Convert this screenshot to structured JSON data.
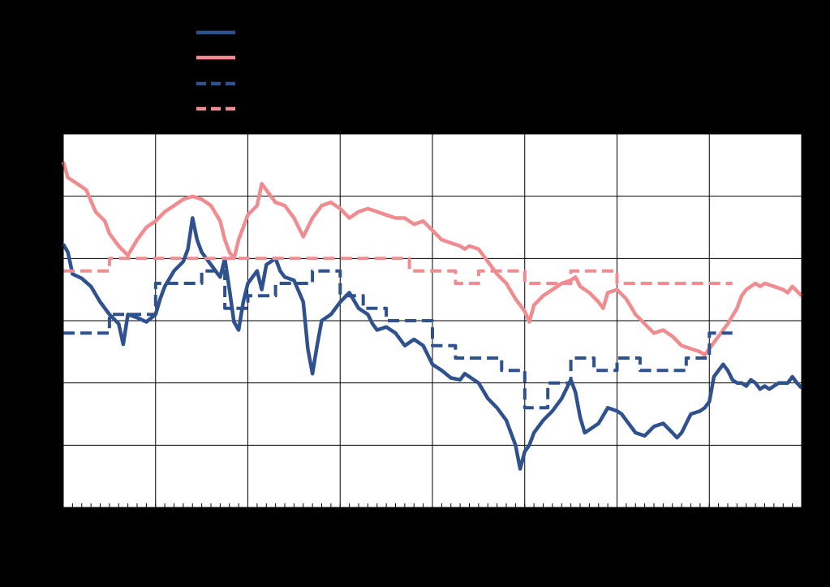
{
  "chart_data": {
    "type": "line",
    "title": "",
    "xlabel": "",
    "ylabel": "",
    "x_range": [
      0,
      8
    ],
    "y_range": [
      0,
      6
    ],
    "x_gridlines": [
      0,
      1,
      2,
      3,
      4,
      5,
      6,
      7,
      8
    ],
    "y_gridlines": [
      0,
      1,
      2,
      3,
      4,
      5,
      6
    ],
    "grid": true,
    "legend": "top-left",
    "colors": {
      "background": "#000000",
      "plot_area": "#ffffff",
      "grid": "#000000",
      "blue": "#2f528f",
      "pink": "#f08c90"
    },
    "series": [
      {
        "style": "solid",
        "color": "#2f528f",
        "points": [
          [
            0.0,
            4.23
          ],
          [
            0.05,
            4.1
          ],
          [
            0.1,
            3.75
          ],
          [
            0.2,
            3.68
          ],
          [
            0.3,
            3.55
          ],
          [
            0.4,
            3.3
          ],
          [
            0.5,
            3.1
          ],
          [
            0.6,
            2.95
          ],
          [
            0.65,
            2.62
          ],
          [
            0.7,
            3.1
          ],
          [
            0.8,
            3.05
          ],
          [
            0.9,
            2.98
          ],
          [
            1.0,
            3.1
          ],
          [
            1.05,
            3.35
          ],
          [
            1.1,
            3.55
          ],
          [
            1.2,
            3.8
          ],
          [
            1.3,
            3.95
          ],
          [
            1.35,
            4.15
          ],
          [
            1.4,
            4.65
          ],
          [
            1.45,
            4.3
          ],
          [
            1.5,
            4.1
          ],
          [
            1.6,
            3.9
          ],
          [
            1.7,
            3.7
          ],
          [
            1.75,
            4.0
          ],
          [
            1.8,
            3.5
          ],
          [
            1.85,
            2.98
          ],
          [
            1.9,
            2.85
          ],
          [
            1.95,
            3.3
          ],
          [
            2.0,
            3.6
          ],
          [
            2.1,
            3.8
          ],
          [
            2.15,
            3.5
          ],
          [
            2.2,
            3.9
          ],
          [
            2.3,
            4.0
          ],
          [
            2.35,
            3.8
          ],
          [
            2.4,
            3.7
          ],
          [
            2.5,
            3.65
          ],
          [
            2.6,
            3.3
          ],
          [
            2.65,
            2.55
          ],
          [
            2.7,
            2.15
          ],
          [
            2.75,
            2.6
          ],
          [
            2.8,
            3.0
          ],
          [
            2.9,
            3.1
          ],
          [
            3.0,
            3.3
          ],
          [
            3.1,
            3.45
          ],
          [
            3.2,
            3.2
          ],
          [
            3.3,
            3.1
          ],
          [
            3.35,
            2.95
          ],
          [
            3.4,
            2.85
          ],
          [
            3.5,
            2.9
          ],
          [
            3.6,
            2.8
          ],
          [
            3.7,
            2.6
          ],
          [
            3.8,
            2.7
          ],
          [
            3.9,
            2.6
          ],
          [
            4.0,
            2.3
          ],
          [
            4.1,
            2.2
          ],
          [
            4.2,
            2.08
          ],
          [
            4.3,
            2.05
          ],
          [
            4.35,
            2.15
          ],
          [
            4.4,
            2.1
          ],
          [
            4.5,
            2.0
          ],
          [
            4.6,
            1.75
          ],
          [
            4.7,
            1.6
          ],
          [
            4.8,
            1.4
          ],
          [
            4.9,
            1.0
          ],
          [
            4.95,
            0.62
          ],
          [
            5.0,
            0.9
          ],
          [
            5.05,
            1.0
          ],
          [
            5.1,
            1.2
          ],
          [
            5.2,
            1.4
          ],
          [
            5.3,
            1.55
          ],
          [
            5.4,
            1.75
          ],
          [
            5.5,
            2.05
          ],
          [
            5.55,
            1.85
          ],
          [
            5.6,
            1.45
          ],
          [
            5.65,
            1.2
          ],
          [
            5.7,
            1.25
          ],
          [
            5.8,
            1.35
          ],
          [
            5.9,
            1.6
          ],
          [
            6.0,
            1.55
          ],
          [
            6.05,
            1.5
          ],
          [
            6.1,
            1.4
          ],
          [
            6.2,
            1.2
          ],
          [
            6.3,
            1.15
          ],
          [
            6.4,
            1.3
          ],
          [
            6.5,
            1.35
          ],
          [
            6.6,
            1.2
          ],
          [
            6.65,
            1.12
          ],
          [
            6.7,
            1.2
          ],
          [
            6.8,
            1.5
          ],
          [
            6.9,
            1.55
          ],
          [
            6.95,
            1.6
          ],
          [
            7.0,
            1.7
          ],
          [
            7.05,
            2.1
          ],
          [
            7.1,
            2.2
          ],
          [
            7.15,
            2.3
          ],
          [
            7.2,
            2.2
          ],
          [
            7.25,
            2.05
          ],
          [
            7.3,
            2.0
          ],
          [
            7.35,
            2.0
          ],
          [
            7.4,
            1.95
          ],
          [
            7.45,
            2.05
          ],
          [
            7.5,
            2.0
          ],
          [
            7.55,
            1.9
          ],
          [
            7.6,
            1.95
          ],
          [
            7.65,
            1.9
          ],
          [
            7.7,
            1.95
          ],
          [
            7.75,
            2.0
          ],
          [
            7.8,
            2.0
          ],
          [
            7.85,
            2.0
          ],
          [
            7.9,
            2.1
          ],
          [
            7.95,
            2.0
          ],
          [
            8.0,
            1.92
          ]
        ]
      },
      {
        "style": "solid",
        "color": "#f08c90",
        "points": [
          [
            0.0,
            5.55
          ],
          [
            0.05,
            5.3
          ],
          [
            0.15,
            5.2
          ],
          [
            0.25,
            5.1
          ],
          [
            0.35,
            4.75
          ],
          [
            0.45,
            4.6
          ],
          [
            0.5,
            4.4
          ],
          [
            0.6,
            4.2
          ],
          [
            0.7,
            4.05
          ],
          [
            0.8,
            4.3
          ],
          [
            0.9,
            4.5
          ],
          [
            1.0,
            4.6
          ],
          [
            1.1,
            4.75
          ],
          [
            1.2,
            4.85
          ],
          [
            1.3,
            4.95
          ],
          [
            1.4,
            5.0
          ],
          [
            1.5,
            4.95
          ],
          [
            1.6,
            4.85
          ],
          [
            1.7,
            4.6
          ],
          [
            1.75,
            4.3
          ],
          [
            1.8,
            4.1
          ],
          [
            1.85,
            4.0
          ],
          [
            1.9,
            4.3
          ],
          [
            1.95,
            4.5
          ],
          [
            2.0,
            4.7
          ],
          [
            2.1,
            4.85
          ],
          [
            2.15,
            5.2
          ],
          [
            2.2,
            5.1
          ],
          [
            2.3,
            4.9
          ],
          [
            2.4,
            4.85
          ],
          [
            2.5,
            4.65
          ],
          [
            2.6,
            4.35
          ],
          [
            2.7,
            4.65
          ],
          [
            2.8,
            4.85
          ],
          [
            2.9,
            4.9
          ],
          [
            3.0,
            4.8
          ],
          [
            3.1,
            4.65
          ],
          [
            3.2,
            4.75
          ],
          [
            3.3,
            4.8
          ],
          [
            3.4,
            4.75
          ],
          [
            3.5,
            4.7
          ],
          [
            3.6,
            4.65
          ],
          [
            3.7,
            4.65
          ],
          [
            3.8,
            4.55
          ],
          [
            3.9,
            4.6
          ],
          [
            4.0,
            4.45
          ],
          [
            4.1,
            4.3
          ],
          [
            4.2,
            4.25
          ],
          [
            4.3,
            4.2
          ],
          [
            4.35,
            4.15
          ],
          [
            4.4,
            4.2
          ],
          [
            4.5,
            4.15
          ],
          [
            4.6,
            3.95
          ],
          [
            4.7,
            3.75
          ],
          [
            4.8,
            3.6
          ],
          [
            4.9,
            3.35
          ],
          [
            5.0,
            3.15
          ],
          [
            5.05,
            2.98
          ],
          [
            5.1,
            3.25
          ],
          [
            5.2,
            3.4
          ],
          [
            5.3,
            3.5
          ],
          [
            5.4,
            3.6
          ],
          [
            5.5,
            3.65
          ],
          [
            5.55,
            3.7
          ],
          [
            5.6,
            3.55
          ],
          [
            5.7,
            3.45
          ],
          [
            5.8,
            3.3
          ],
          [
            5.85,
            3.2
          ],
          [
            5.9,
            3.45
          ],
          [
            6.0,
            3.5
          ],
          [
            6.1,
            3.35
          ],
          [
            6.2,
            3.1
          ],
          [
            6.3,
            2.95
          ],
          [
            6.4,
            2.8
          ],
          [
            6.5,
            2.85
          ],
          [
            6.6,
            2.75
          ],
          [
            6.7,
            2.6
          ],
          [
            6.8,
            2.55
          ],
          [
            6.9,
            2.5
          ],
          [
            6.95,
            2.45
          ],
          [
            7.0,
            2.55
          ],
          [
            7.1,
            2.75
          ],
          [
            7.2,
            2.95
          ],
          [
            7.3,
            3.2
          ],
          [
            7.35,
            3.4
          ],
          [
            7.4,
            3.5
          ],
          [
            7.5,
            3.6
          ],
          [
            7.55,
            3.55
          ],
          [
            7.6,
            3.6
          ],
          [
            7.7,
            3.55
          ],
          [
            7.8,
            3.5
          ],
          [
            7.85,
            3.45
          ],
          [
            7.9,
            3.55
          ],
          [
            8.0,
            3.4
          ]
        ]
      },
      {
        "style": "dashed",
        "color": "#2f528f",
        "points": [
          [
            0.0,
            2.8
          ],
          [
            0.5,
            2.8
          ],
          [
            0.5,
            3.1
          ],
          [
            1.0,
            3.1
          ],
          [
            1.0,
            3.6
          ],
          [
            1.5,
            3.6
          ],
          [
            1.5,
            3.8
          ],
          [
            1.75,
            3.8
          ],
          [
            1.75,
            3.2
          ],
          [
            2.0,
            3.2
          ],
          [
            2.0,
            3.4
          ],
          [
            2.3,
            3.4
          ],
          [
            2.3,
            3.6
          ],
          [
            2.7,
            3.6
          ],
          [
            2.7,
            3.8
          ],
          [
            3.0,
            3.8
          ],
          [
            3.0,
            3.4
          ],
          [
            3.25,
            3.4
          ],
          [
            3.25,
            3.2
          ],
          [
            3.5,
            3.2
          ],
          [
            3.5,
            3.0
          ],
          [
            4.0,
            3.0
          ],
          [
            4.0,
            2.6
          ],
          [
            4.25,
            2.6
          ],
          [
            4.25,
            2.4
          ],
          [
            4.75,
            2.4
          ],
          [
            4.75,
            2.2
          ],
          [
            5.0,
            2.2
          ],
          [
            5.0,
            1.6
          ],
          [
            5.25,
            1.6
          ],
          [
            5.25,
            2.0
          ],
          [
            5.5,
            2.0
          ],
          [
            5.5,
            2.4
          ],
          [
            5.75,
            2.4
          ],
          [
            5.75,
            2.2
          ],
          [
            6.0,
            2.2
          ],
          [
            6.0,
            2.4
          ],
          [
            6.25,
            2.4
          ],
          [
            6.25,
            2.2
          ],
          [
            6.75,
            2.2
          ],
          [
            6.75,
            2.4
          ],
          [
            7.0,
            2.4
          ],
          [
            7.0,
            2.8
          ],
          [
            7.25,
            2.8
          ]
        ]
      },
      {
        "style": "dashed",
        "color": "#f08c90",
        "points": [
          [
            0.0,
            3.8
          ],
          [
            0.5,
            3.8
          ],
          [
            0.5,
            4.0
          ],
          [
            3.75,
            4.0
          ],
          [
            3.75,
            3.8
          ],
          [
            4.25,
            3.8
          ],
          [
            4.25,
            3.6
          ],
          [
            4.5,
            3.6
          ],
          [
            4.5,
            3.8
          ],
          [
            5.0,
            3.8
          ],
          [
            5.0,
            3.6
          ],
          [
            5.5,
            3.6
          ],
          [
            5.5,
            3.8
          ],
          [
            6.0,
            3.8
          ],
          [
            6.0,
            3.6
          ],
          [
            7.25,
            3.6
          ]
        ]
      }
    ]
  }
}
